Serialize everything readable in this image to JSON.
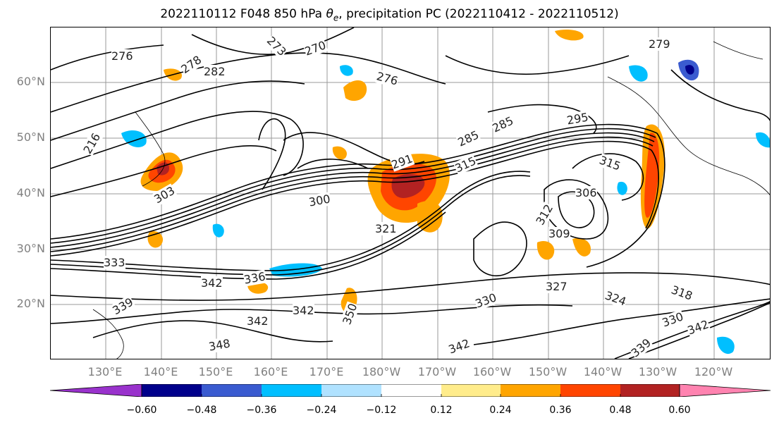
{
  "title_prefix": "2022110112 F048 850 hPa ",
  "title_symbol": "θ",
  "title_subscript": "e",
  "title_suffix": ", precipitation PC (2022110412 - 2022110512)",
  "map": {
    "lat_labels": [
      "60°N",
      "50°N",
      "40°N",
      "30°N",
      "20°N"
    ],
    "lon_labels": [
      "130°E",
      "140°E",
      "150°E",
      "160°E",
      "170°E",
      "180°W",
      "170°W",
      "160°W",
      "150°W",
      "140°W",
      "130°W",
      "120°W"
    ],
    "contour_labels": [
      "276",
      "273",
      "270",
      "278",
      "282",
      "276",
      "279",
      "216",
      "285",
      "285",
      "291",
      "315",
      "300",
      "306",
      "315",
      "303",
      "295",
      "333",
      "321",
      "312",
      "309",
      "336",
      "342",
      "330",
      "327",
      "324",
      "318",
      "342",
      "350",
      "342",
      "339",
      "330",
      "348",
      "342",
      "342",
      "339"
    ]
  },
  "colorbar": {
    "colors": [
      "#9932cc",
      "#00008b",
      "#3a5bd0",
      "#00bfff",
      "#b0e2ff",
      "#ffffff",
      "#ffec8b",
      "#ffa500",
      "#ff4500",
      "#b22222",
      "#ff83b0"
    ],
    "tick_labels": [
      "−0.60",
      "−0.48",
      "−0.36",
      "−0.24",
      "−0.12",
      "0.12",
      "0.24",
      "0.36",
      "0.48",
      "0.60"
    ]
  }
}
